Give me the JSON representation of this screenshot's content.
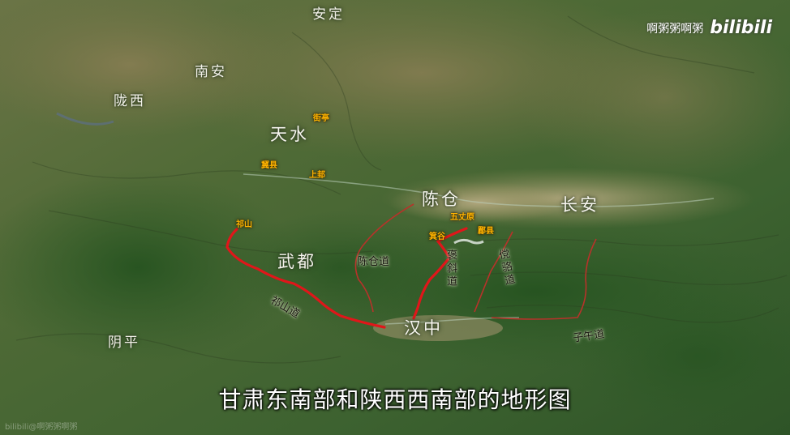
{
  "watermark": {
    "channel": "啊粥粥啊粥",
    "logo": "bilibili"
  },
  "corner_watermark": "bilibili@啊粥粥啊粥",
  "caption": "甘肃东南部和陕西西南部的地形图",
  "regions": {
    "anding": "安定",
    "nanan": "南安",
    "longxi": "陇西",
    "tianshui": "天水",
    "chencang": "陈仓",
    "changan": "长安",
    "wudu": "武都",
    "yinping": "阴平",
    "hanzhong": "汉中"
  },
  "places": {
    "jieting": "街亭",
    "jixian": "冀县",
    "shanggui": "上邽",
    "qishan": "祁山",
    "wuzhangyuan": "五丈原",
    "jigu": "箕谷",
    "meixian": "郿县"
  },
  "routes": {
    "qishan_road": "祁山道",
    "chencang_road": "陈仓道",
    "baoxie_road": "褒斜道",
    "tangluo_road": "傥骆道",
    "ziwu_road": "子午道"
  },
  "colors": {
    "main_route": "#e0161a",
    "minor_route": "#b8322a",
    "place_label": "#ffb300",
    "river_lake": "#b9cdb9"
  }
}
